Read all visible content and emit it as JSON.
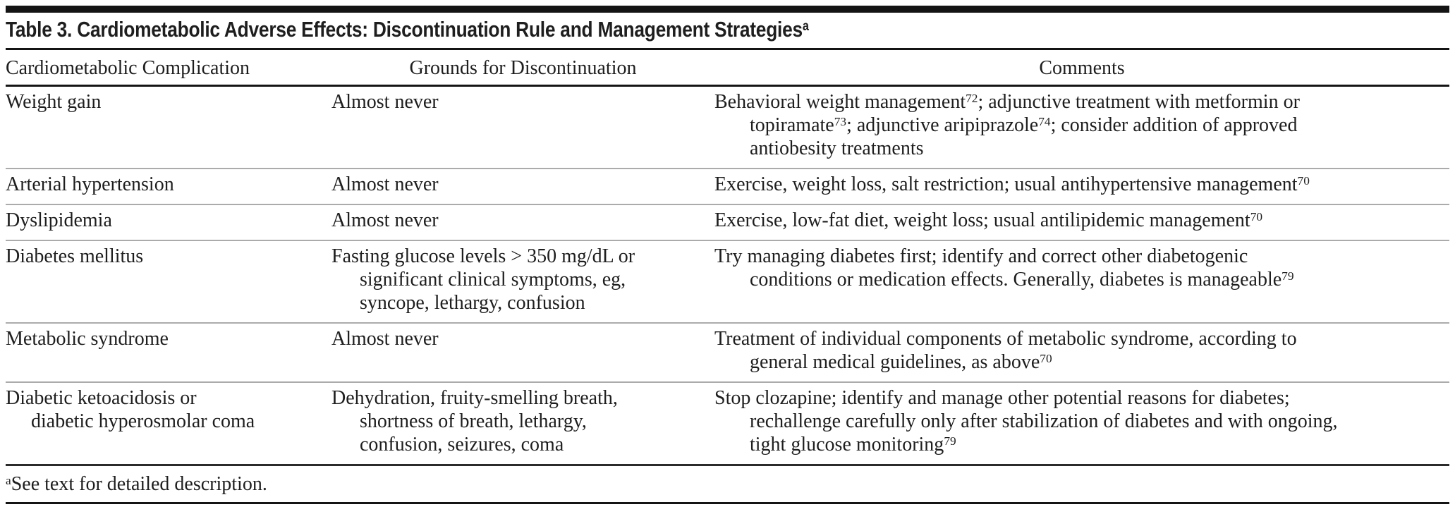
{
  "title": {
    "text": "Table 3. Cardiometabolic Adverse Effects: Discontinuation Rule and Management Strategies",
    "footnote_marker": "a"
  },
  "columns": [
    "Cardiometabolic Complication",
    "Grounds for Discontinuation",
    "Comments"
  ],
  "rows": [
    {
      "complication": [
        [
          {
            "t": "Weight gain"
          }
        ]
      ],
      "grounds": [
        [
          {
            "t": "Almost never"
          }
        ]
      ],
      "comments": [
        [
          {
            "t": "Behavioral weight management"
          },
          {
            "t": "72",
            "sup": true
          },
          {
            "t": "; adjunctive treatment with metformin or"
          }
        ],
        [
          {
            "t": "topiramate"
          },
          {
            "t": "73",
            "sup": true
          },
          {
            "t": "; adjunctive aripiprazole"
          },
          {
            "t": "74",
            "sup": true
          },
          {
            "t": "; consider addition of approved"
          }
        ],
        [
          {
            "t": "antiobesity treatments"
          }
        ]
      ]
    },
    {
      "complication": [
        [
          {
            "t": "Arterial hypertension"
          }
        ]
      ],
      "grounds": [
        [
          {
            "t": "Almost never"
          }
        ]
      ],
      "comments": [
        [
          {
            "t": "Exercise, weight loss, salt restriction; usual antihypertensive management"
          },
          {
            "t": "70",
            "sup": true
          }
        ]
      ]
    },
    {
      "complication": [
        [
          {
            "t": "Dyslipidemia"
          }
        ]
      ],
      "grounds": [
        [
          {
            "t": "Almost never"
          }
        ]
      ],
      "comments": [
        [
          {
            "t": "Exercise, low-fat diet, weight loss; usual antilipidemic management"
          },
          {
            "t": "70",
            "sup": true
          }
        ]
      ]
    },
    {
      "complication": [
        [
          {
            "t": "Diabetes mellitus"
          }
        ]
      ],
      "grounds": [
        [
          {
            "t": "Fasting glucose levels > 350 mg/dL or"
          }
        ],
        [
          {
            "t": "significant clinical symptoms, eg,"
          }
        ],
        [
          {
            "t": "syncope, lethargy, confusion"
          }
        ]
      ],
      "comments": [
        [
          {
            "t": "Try managing diabetes first; identify and correct other diabetogenic"
          }
        ],
        [
          {
            "t": "conditions or medication effects. Generally, diabetes is manageable"
          },
          {
            "t": "79",
            "sup": true
          }
        ]
      ]
    },
    {
      "complication": [
        [
          {
            "t": "Metabolic syndrome"
          }
        ]
      ],
      "grounds": [
        [
          {
            "t": "Almost never"
          }
        ]
      ],
      "comments": [
        [
          {
            "t": "Treatment of individual components of metabolic syndrome, according to"
          }
        ],
        [
          {
            "t": "general medical guidelines, as above"
          },
          {
            "t": "70",
            "sup": true
          }
        ]
      ]
    },
    {
      "complication": [
        [
          {
            "t": "Diabetic ketoacidosis or"
          }
        ],
        [
          {
            "t": "diabetic hyperosmolar coma"
          }
        ]
      ],
      "grounds": [
        [
          {
            "t": "Dehydration, fruity-smelling breath,"
          }
        ],
        [
          {
            "t": "shortness of breath, lethargy,"
          }
        ],
        [
          {
            "t": "confusion, seizures, coma"
          }
        ]
      ],
      "comments": [
        [
          {
            "t": "Stop clozapine; identify and manage other potential reasons for diabetes;"
          }
        ],
        [
          {
            "t": "rechallenge carefully only after stabilization of diabetes and with ongoing,"
          }
        ],
        [
          {
            "t": "tight glucose monitoring"
          },
          {
            "t": "79",
            "sup": true
          }
        ]
      ]
    }
  ],
  "footnote": {
    "marker": "a",
    "text": "See text for detailed description."
  },
  "colors": {
    "text": "#1e1e1e",
    "rule_black": "#141414",
    "rule_gray": "#ababab",
    "background": "#ffffff"
  }
}
